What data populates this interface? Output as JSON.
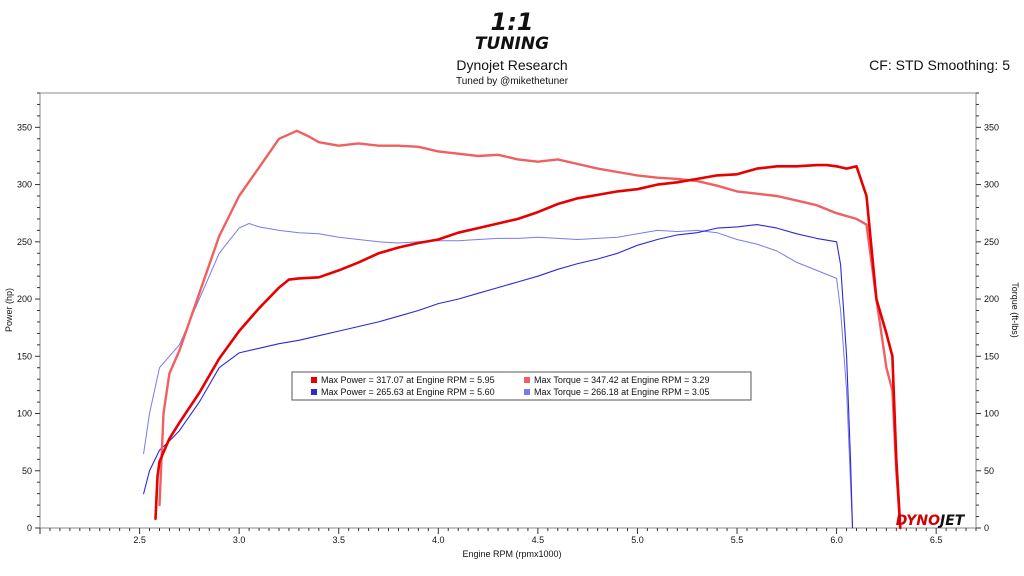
{
  "header": {
    "logo_top": "1:1",
    "logo_bottom": "TUNING",
    "title": "Dynojet Research",
    "subtitle": "Tuned by @mikethetuner",
    "cf": "CF: STD Smoothing: 5"
  },
  "brand": {
    "part1": "DYNO",
    "part2": "JET",
    "color": "#d40000"
  },
  "chart_data": {
    "type": "line",
    "xlabel": "Engine RPM (rpmx1000)",
    "ylabel_left": "Power (hp)",
    "ylabel_right": "Torque (ft-lbs)",
    "xlim": [
      2.0,
      6.7
    ],
    "ylim": [
      0,
      380
    ],
    "x_ticks": [
      "2.5",
      "3.0",
      "3.5",
      "4.0",
      "4.5",
      "5.0",
      "5.5",
      "6.0",
      "6.5"
    ],
    "y_ticks": [
      "0",
      "50",
      "100",
      "150",
      "200",
      "250",
      "300",
      "350"
    ],
    "grid": false,
    "legend": {
      "position": "center",
      "entries": [
        "Max Power = 317.07 at Engine RPM = 5.95",
        "Max Torque = 347.42 at Engine RPM = 3.29",
        "Max Power = 265.63 at Engine RPM = 5.60",
        "Max Torque = 266.18 at Engine RPM = 3.05"
      ]
    },
    "series": [
      {
        "color": "#e60000",
        "x": [
          2.58,
          2.59,
          2.6,
          2.65,
          2.7,
          2.8,
          2.9,
          3.0,
          3.1,
          3.2,
          3.25,
          3.3,
          3.4,
          3.5,
          3.6,
          3.7,
          3.8,
          3.9,
          4.0,
          4.1,
          4.2,
          4.3,
          4.4,
          4.5,
          4.6,
          4.7,
          4.8,
          4.9,
          5.0,
          5.1,
          5.2,
          5.3,
          5.4,
          5.5,
          5.6,
          5.7,
          5.8,
          5.9,
          5.95,
          6.0,
          6.05,
          6.1,
          6.15,
          6.2,
          6.25,
          6.28,
          6.3,
          6.32
        ],
        "y": [
          8,
          45,
          58,
          78,
          92,
          118,
          148,
          172,
          192,
          210,
          217,
          218,
          219,
          225,
          232,
          240,
          245,
          249,
          252,
          258,
          262,
          266,
          270,
          276,
          283,
          288,
          291,
          294,
          296,
          300,
          302,
          305,
          308,
          309,
          314,
          316,
          316,
          317,
          317,
          316,
          314,
          316,
          290,
          200,
          170,
          150,
          60,
          0
        ]
      },
      {
        "color": "#f06060",
        "x": [
          2.6,
          2.62,
          2.65,
          2.7,
          2.8,
          2.9,
          3.0,
          3.1,
          3.2,
          3.29,
          3.35,
          3.4,
          3.5,
          3.6,
          3.7,
          3.8,
          3.9,
          4.0,
          4.1,
          4.2,
          4.3,
          4.4,
          4.5,
          4.6,
          4.7,
          4.8,
          4.9,
          5.0,
          5.1,
          5.2,
          5.3,
          5.4,
          5.5,
          5.6,
          5.7,
          5.8,
          5.9,
          6.0,
          6.1,
          6.15,
          6.2,
          6.25,
          6.28,
          6.3,
          6.32
        ],
        "y": [
          20,
          100,
          135,
          155,
          205,
          255,
          290,
          315,
          340,
          347,
          342,
          337,
          334,
          336,
          334,
          334,
          333,
          329,
          327,
          325,
          326,
          322,
          320,
          322,
          318,
          314,
          311,
          308,
          306,
          305,
          303,
          299,
          294,
          292,
          290,
          286,
          282,
          275,
          270,
          265,
          200,
          140,
          120,
          50,
          0
        ]
      },
      {
        "color": "#2a2ad8",
        "x": [
          2.52,
          2.55,
          2.6,
          2.65,
          2.7,
          2.8,
          2.9,
          3.0,
          3.1,
          3.2,
          3.3,
          3.4,
          3.5,
          3.6,
          3.7,
          3.8,
          3.9,
          4.0,
          4.1,
          4.2,
          4.3,
          4.4,
          4.5,
          4.6,
          4.7,
          4.8,
          4.9,
          5.0,
          5.1,
          5.2,
          5.3,
          5.4,
          5.5,
          5.6,
          5.7,
          5.8,
          5.9,
          6.0,
          6.02,
          6.05,
          6.07,
          6.08
        ],
        "y": [
          30,
          50,
          68,
          76,
          85,
          110,
          140,
          153,
          157,
          161,
          164,
          168,
          172,
          176,
          180,
          185,
          190,
          196,
          200,
          205,
          210,
          215,
          220,
          226,
          231,
          235,
          240,
          247,
          252,
          256,
          258,
          262,
          263,
          265,
          262,
          257,
          253,
          250,
          230,
          150,
          60,
          0
        ]
      },
      {
        "color": "#7a7aee",
        "x": [
          2.52,
          2.55,
          2.6,
          2.65,
          2.7,
          2.8,
          2.9,
          3.0,
          3.05,
          3.1,
          3.2,
          3.3,
          3.4,
          3.5,
          3.6,
          3.7,
          3.8,
          3.9,
          4.0,
          4.1,
          4.2,
          4.3,
          4.4,
          4.5,
          4.6,
          4.7,
          4.8,
          4.9,
          5.0,
          5.1,
          5.2,
          5.3,
          5.4,
          5.5,
          5.6,
          5.7,
          5.8,
          5.9,
          6.0,
          6.02,
          6.05,
          6.07,
          6.08
        ],
        "y": [
          65,
          100,
          140,
          150,
          160,
          200,
          240,
          262,
          266,
          263,
          260,
          258,
          257,
          254,
          252,
          250,
          249,
          250,
          251,
          251,
          252,
          253,
          253,
          254,
          253,
          252,
          253,
          254,
          257,
          260,
          259,
          260,
          258,
          252,
          248,
          242,
          232,
          225,
          218,
          190,
          120,
          40,
          0
        ]
      }
    ]
  }
}
